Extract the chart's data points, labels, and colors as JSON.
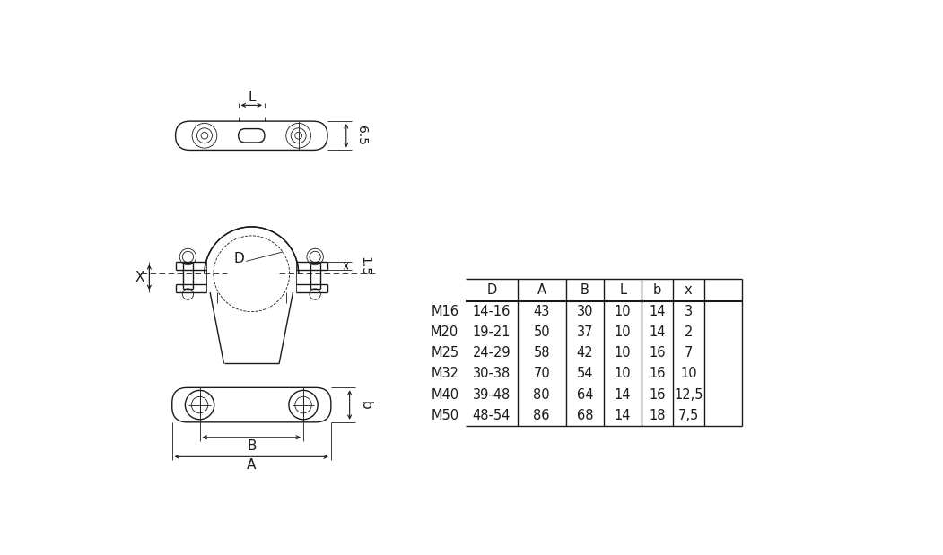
{
  "bg_color": "#ffffff",
  "line_color": "#1a1a1a",
  "text_color": "#1a1a1a",
  "table_headers": [
    "",
    "D",
    "A",
    "B",
    "L",
    "b",
    "x"
  ],
  "table_rows": [
    [
      "M16",
      "14-16",
      "43",
      "30",
      "10",
      "14",
      "3"
    ],
    [
      "M20",
      "19-21",
      "50",
      "37",
      "10",
      "14",
      "2"
    ],
    [
      "M25",
      "24-29",
      "58",
      "42",
      "10",
      "16",
      "7"
    ],
    [
      "M32",
      "30-38",
      "70",
      "54",
      "10",
      "16",
      "10"
    ],
    [
      "M40",
      "39-48",
      "80",
      "64",
      "14",
      "16",
      "12,5"
    ],
    [
      "M50",
      "48-54",
      "86",
      "68",
      "14",
      "18",
      "7,5"
    ]
  ],
  "font_size_table": 10.5,
  "font_size_label": 11,
  "dim_font_size": 10,
  "lw_main": 1.0,
  "lw_thin": 0.6,
  "lw_thick": 1.5
}
